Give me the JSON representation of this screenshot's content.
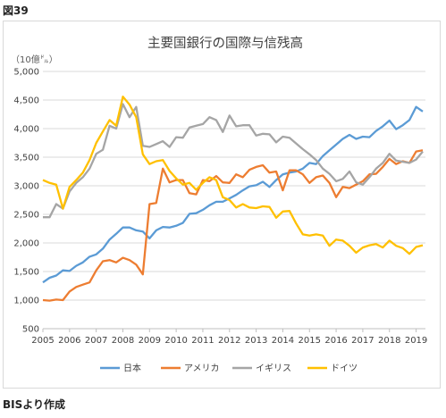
{
  "figure_label": "図39",
  "source_note": "BISより作成",
  "chart_data": {
    "type": "line",
    "title": "主要国銀行の国際与信残高",
    "unit_label": "（10億㌦）",
    "xlabel": "",
    "ylabel": "",
    "ylim": [
      500,
      5000
    ],
    "yticks": [
      "500",
      "1,000",
      "1,500",
      "2,000",
      "2,500",
      "3,000",
      "3,500",
      "4,000",
      "4,500",
      "5,000"
    ],
    "xticks": [
      "2005",
      "2006",
      "2007",
      "2008",
      "2009",
      "2010",
      "2011",
      "2012",
      "2013",
      "2014",
      "2015",
      "2016",
      "2017",
      "2018",
      "2019"
    ],
    "xlim": [
      2005,
      2019.35
    ],
    "grid": true,
    "legend_position": "bottom",
    "series": [
      {
        "name": "日本",
        "color": "#5b9bd5",
        "points": [
          [
            2005,
            1310
          ],
          [
            2005.25,
            1390
          ],
          [
            2005.5,
            1430
          ],
          [
            2005.75,
            1520
          ],
          [
            2006,
            1510
          ],
          [
            2006.25,
            1600
          ],
          [
            2006.5,
            1660
          ],
          [
            2006.75,
            1760
          ],
          [
            2007,
            1800
          ],
          [
            2007.25,
            1900
          ],
          [
            2007.5,
            2060
          ],
          [
            2007.75,
            2160
          ],
          [
            2008,
            2270
          ],
          [
            2008.25,
            2270
          ],
          [
            2008.5,
            2220
          ],
          [
            2008.75,
            2200
          ],
          [
            2009,
            2080
          ],
          [
            2009.25,
            2220
          ],
          [
            2009.5,
            2280
          ],
          [
            2009.75,
            2270
          ],
          [
            2010,
            2300
          ],
          [
            2010.25,
            2350
          ],
          [
            2010.5,
            2510
          ],
          [
            2010.75,
            2520
          ],
          [
            2011,
            2580
          ],
          [
            2011.25,
            2660
          ],
          [
            2011.5,
            2720
          ],
          [
            2011.75,
            2720
          ],
          [
            2012,
            2780
          ],
          [
            2012.25,
            2840
          ],
          [
            2012.5,
            2920
          ],
          [
            2012.75,
            2990
          ],
          [
            2013,
            3010
          ],
          [
            2013.25,
            3070
          ],
          [
            2013.5,
            2980
          ],
          [
            2013.75,
            3100
          ],
          [
            2014,
            3200
          ],
          [
            2014.25,
            3230
          ],
          [
            2014.5,
            3250
          ],
          [
            2014.75,
            3300
          ],
          [
            2015,
            3400
          ],
          [
            2015.25,
            3380
          ],
          [
            2015.5,
            3520
          ],
          [
            2015.75,
            3620
          ],
          [
            2016,
            3720
          ],
          [
            2016.25,
            3820
          ],
          [
            2016.5,
            3890
          ],
          [
            2016.75,
            3820
          ],
          [
            2017,
            3860
          ],
          [
            2017.25,
            3850
          ],
          [
            2017.5,
            3960
          ],
          [
            2017.75,
            4040
          ],
          [
            2018,
            4140
          ],
          [
            2018.25,
            3990
          ],
          [
            2018.5,
            4060
          ],
          [
            2018.75,
            4150
          ],
          [
            2019,
            4380
          ],
          [
            2019.25,
            4300
          ]
        ]
      },
      {
        "name": "アメリカ",
        "color": "#ed7d31",
        "points": [
          [
            2005,
            1000
          ],
          [
            2005.25,
            990
          ],
          [
            2005.5,
            1010
          ],
          [
            2005.75,
            1000
          ],
          [
            2006,
            1150
          ],
          [
            2006.25,
            1230
          ],
          [
            2006.5,
            1270
          ],
          [
            2006.75,
            1310
          ],
          [
            2007,
            1520
          ],
          [
            2007.25,
            1680
          ],
          [
            2007.5,
            1700
          ],
          [
            2007.75,
            1660
          ],
          [
            2008,
            1740
          ],
          [
            2008.25,
            1700
          ],
          [
            2008.5,
            1620
          ],
          [
            2008.75,
            1450
          ],
          [
            2009,
            2680
          ],
          [
            2009.25,
            2700
          ],
          [
            2009.5,
            3300
          ],
          [
            2009.75,
            3060
          ],
          [
            2010,
            3100
          ],
          [
            2010.25,
            3100
          ],
          [
            2010.5,
            2870
          ],
          [
            2010.75,
            2850
          ],
          [
            2011,
            3100
          ],
          [
            2011.25,
            3080
          ],
          [
            2011.5,
            3170
          ],
          [
            2011.75,
            3060
          ],
          [
            2012,
            3050
          ],
          [
            2012.25,
            3200
          ],
          [
            2012.5,
            3150
          ],
          [
            2012.75,
            3280
          ],
          [
            2013,
            3330
          ],
          [
            2013.25,
            3360
          ],
          [
            2013.5,
            3230
          ],
          [
            2013.75,
            3250
          ],
          [
            2014,
            2920
          ],
          [
            2014.25,
            3270
          ],
          [
            2014.5,
            3270
          ],
          [
            2014.75,
            3200
          ],
          [
            2015,
            3050
          ],
          [
            2015.25,
            3150
          ],
          [
            2015.5,
            3180
          ],
          [
            2015.75,
            3050
          ],
          [
            2016,
            2800
          ],
          [
            2016.25,
            2980
          ],
          [
            2016.5,
            2960
          ],
          [
            2016.75,
            3020
          ],
          [
            2017,
            3080
          ],
          [
            2017.25,
            3200
          ],
          [
            2017.5,
            3210
          ],
          [
            2017.75,
            3330
          ],
          [
            2018,
            3470
          ],
          [
            2018.25,
            3380
          ],
          [
            2018.5,
            3430
          ],
          [
            2018.75,
            3400
          ],
          [
            2019,
            3600
          ],
          [
            2019.25,
            3620
          ]
        ]
      },
      {
        "name": "イギリス",
        "color": "#a5a5a5",
        "points": [
          [
            2005,
            2450
          ],
          [
            2005.25,
            2450
          ],
          [
            2005.5,
            2680
          ],
          [
            2005.75,
            2600
          ],
          [
            2006,
            2900
          ],
          [
            2006.25,
            3050
          ],
          [
            2006.5,
            3150
          ],
          [
            2006.75,
            3300
          ],
          [
            2007,
            3560
          ],
          [
            2007.25,
            3630
          ],
          [
            2007.5,
            4050
          ],
          [
            2007.75,
            4000
          ],
          [
            2008,
            4430
          ],
          [
            2008.25,
            4200
          ],
          [
            2008.5,
            4380
          ],
          [
            2008.75,
            3700
          ],
          [
            2009,
            3680
          ],
          [
            2009.25,
            3730
          ],
          [
            2009.5,
            3780
          ],
          [
            2009.75,
            3680
          ],
          [
            2010,
            3850
          ],
          [
            2010.25,
            3840
          ],
          [
            2010.5,
            4020
          ],
          [
            2010.75,
            4050
          ],
          [
            2011,
            4080
          ],
          [
            2011.25,
            4200
          ],
          [
            2011.5,
            4150
          ],
          [
            2011.75,
            3940
          ],
          [
            2012,
            4230
          ],
          [
            2012.25,
            4040
          ],
          [
            2012.5,
            4060
          ],
          [
            2012.75,
            4060
          ],
          [
            2013,
            3880
          ],
          [
            2013.25,
            3910
          ],
          [
            2013.5,
            3900
          ],
          [
            2013.75,
            3760
          ],
          [
            2014,
            3860
          ],
          [
            2014.25,
            3840
          ],
          [
            2014.5,
            3740
          ],
          [
            2014.75,
            3640
          ],
          [
            2015,
            3550
          ],
          [
            2015.25,
            3450
          ],
          [
            2015.5,
            3300
          ],
          [
            2015.75,
            3210
          ],
          [
            2016,
            3080
          ],
          [
            2016.25,
            3120
          ],
          [
            2016.5,
            3250
          ],
          [
            2016.75,
            3060
          ],
          [
            2017,
            3020
          ],
          [
            2017.25,
            3150
          ],
          [
            2017.5,
            3300
          ],
          [
            2017.75,
            3400
          ],
          [
            2018,
            3560
          ],
          [
            2018.25,
            3440
          ],
          [
            2018.5,
            3420
          ],
          [
            2018.75,
            3400
          ],
          [
            2019,
            3460
          ],
          [
            2019.25,
            3600
          ]
        ]
      },
      {
        "name": "ドイツ",
        "color": "#ffc000",
        "points": [
          [
            2005,
            3100
          ],
          [
            2005.25,
            3050
          ],
          [
            2005.5,
            3020
          ],
          [
            2005.75,
            2600
          ],
          [
            2006,
            2980
          ],
          [
            2006.25,
            3100
          ],
          [
            2006.5,
            3230
          ],
          [
            2006.75,
            3450
          ],
          [
            2007,
            3750
          ],
          [
            2007.25,
            3950
          ],
          [
            2007.5,
            4150
          ],
          [
            2007.75,
            4050
          ],
          [
            2008,
            4560
          ],
          [
            2008.25,
            4420
          ],
          [
            2008.5,
            4200
          ],
          [
            2008.75,
            3550
          ],
          [
            2009,
            3380
          ],
          [
            2009.25,
            3430
          ],
          [
            2009.5,
            3450
          ],
          [
            2009.75,
            3260
          ],
          [
            2010,
            3130
          ],
          [
            2010.25,
            3020
          ],
          [
            2010.5,
            3050
          ],
          [
            2010.75,
            2930
          ],
          [
            2011,
            3050
          ],
          [
            2011.25,
            3150
          ],
          [
            2011.5,
            3100
          ],
          [
            2011.75,
            2800
          ],
          [
            2012,
            2750
          ],
          [
            2012.25,
            2620
          ],
          [
            2012.5,
            2680
          ],
          [
            2012.75,
            2620
          ],
          [
            2013,
            2610
          ],
          [
            2013.25,
            2640
          ],
          [
            2013.5,
            2630
          ],
          [
            2013.75,
            2440
          ],
          [
            2014,
            2550
          ],
          [
            2014.25,
            2560
          ],
          [
            2014.5,
            2340
          ],
          [
            2014.75,
            2150
          ],
          [
            2015,
            2130
          ],
          [
            2015.25,
            2150
          ],
          [
            2015.5,
            2130
          ],
          [
            2015.75,
            1950
          ],
          [
            2016,
            2060
          ],
          [
            2016.25,
            2040
          ],
          [
            2016.5,
            1950
          ],
          [
            2016.75,
            1830
          ],
          [
            2017,
            1920
          ],
          [
            2017.25,
            1960
          ],
          [
            2017.5,
            1980
          ],
          [
            2017.75,
            1920
          ],
          [
            2018,
            2040
          ],
          [
            2018.25,
            1950
          ],
          [
            2018.5,
            1910
          ],
          [
            2018.75,
            1810
          ],
          [
            2019,
            1930
          ],
          [
            2019.25,
            1960
          ]
        ]
      }
    ]
  }
}
